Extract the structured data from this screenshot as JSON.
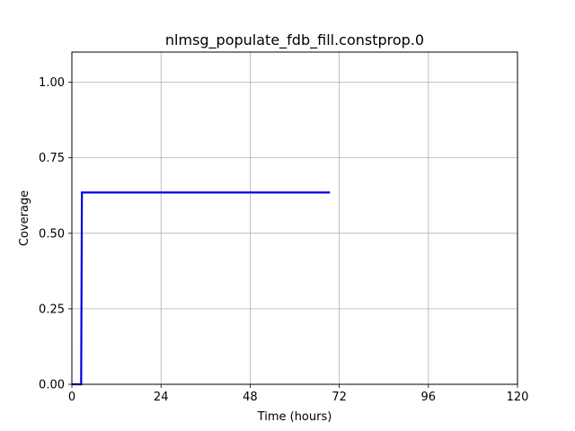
{
  "chart_data": {
    "type": "line",
    "title": "nlmsg_populate_fdb_fill.constprop.0",
    "xlabel": "Time (hours)",
    "ylabel": "Coverage",
    "xlim": [
      0,
      120
    ],
    "ylim": [
      0,
      1.1
    ],
    "xticks": [
      0,
      24,
      48,
      72,
      96,
      120
    ],
    "xtick_labels": [
      "0",
      "24",
      "48",
      "72",
      "96",
      "120"
    ],
    "yticks": [
      0,
      0.25,
      0.5,
      0.75,
      1.0
    ],
    "ytick_labels": [
      "0.00",
      "0.25",
      "0.50",
      "0.75",
      "1.00"
    ],
    "grid": true,
    "series": [
      {
        "color": "#0000dd",
        "x": [
          0,
          2.5,
          2.7,
          69.5
        ],
        "y": [
          0,
          0,
          0.635,
          0.635
        ]
      }
    ]
  }
}
